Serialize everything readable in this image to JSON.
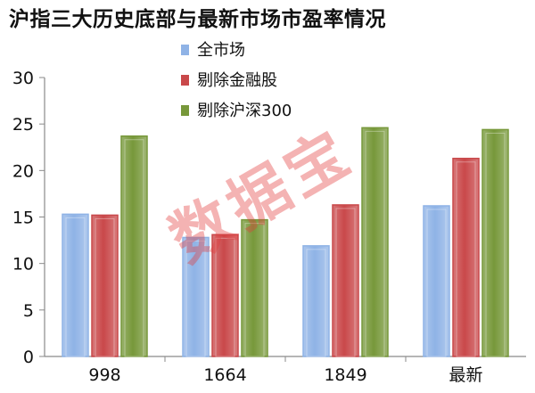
{
  "chart_data": {
    "type": "bar",
    "title": "沪指三大历史底部与最新市场市盈率情况",
    "categories": [
      "998",
      "1664",
      "1849",
      "最新"
    ],
    "series": [
      {
        "name": "全市场",
        "values": [
          15.3,
          12.8,
          11.9,
          16.2
        ],
        "color": "#8fb3e6"
      },
      {
        "name": "剔除金融股",
        "values": [
          15.2,
          13.1,
          16.3,
          21.3
        ],
        "color": "#c9484a"
      },
      {
        "name": "剔除沪深300",
        "values": [
          23.7,
          14.7,
          24.6,
          24.4
        ],
        "color": "#77983a"
      }
    ],
    "ylim": [
      0,
      30
    ],
    "yticks": [
      0,
      5,
      10,
      15,
      20,
      25,
      30
    ],
    "grid": false,
    "legend_position": "top-center",
    "watermark": "数据宝"
  }
}
